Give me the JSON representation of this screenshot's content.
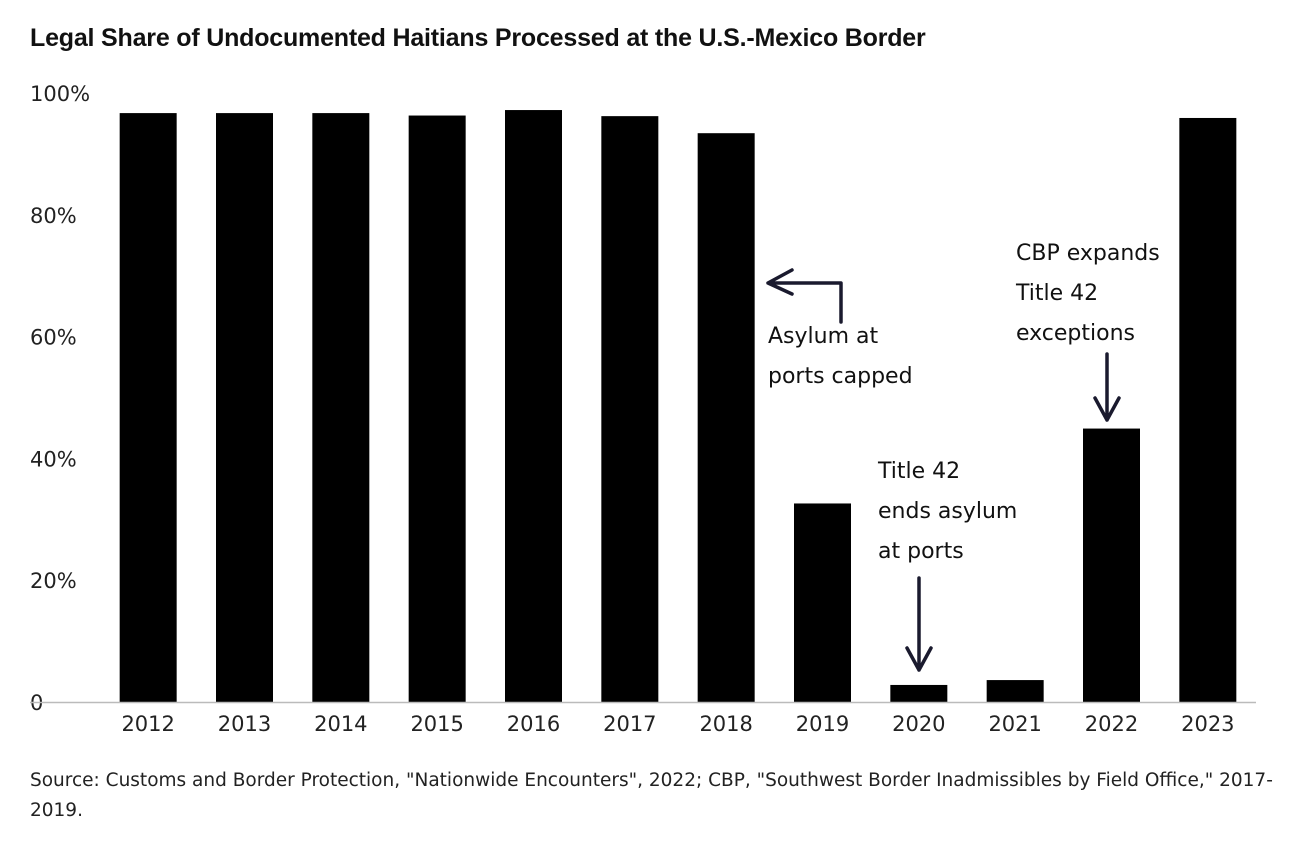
{
  "chart_data": {
    "type": "bar",
    "title": "Legal Share of Undocumented Haitians Processed at the U.S.-Mexico Border",
    "categories": [
      "2012",
      "2013",
      "2014",
      "2015",
      "2016",
      "2017",
      "2018",
      "2019",
      "2020",
      "2021",
      "2022",
      "2023"
    ],
    "values": [
      96.7,
      96.7,
      96.7,
      96.3,
      97.2,
      96.2,
      93.4,
      32.6,
      2.8,
      3.6,
      44.9,
      95.9
    ],
    "ylim": [
      0,
      100
    ],
    "y_ticks": [
      {
        "value": 100,
        "label": "100%"
      },
      {
        "value": 80,
        "label": "80%"
      },
      {
        "value": 60,
        "label": "60%"
      },
      {
        "value": 40,
        "label": "40%"
      },
      {
        "value": 20,
        "label": "20%"
      },
      {
        "value": 0,
        "label": "0"
      }
    ],
    "xlabel": "",
    "ylabel": "",
    "grid": false,
    "bar_color": "#000000",
    "axis_color": "#bbbbbb",
    "annotations": [
      {
        "category": "2018",
        "lines": [
          "Asylum at",
          "ports capped"
        ]
      },
      {
        "category": "2020",
        "lines": [
          "Title 42",
          "ends asylum",
          "at ports"
        ]
      },
      {
        "category": "2022",
        "lines": [
          "CBP expands",
          "Title 42",
          "exceptions"
        ]
      }
    ]
  },
  "source": "Source: Customs and Border Protection, \"Nationwide Encounters\", 2022; CBP, \"Southwest Border Inadmissibles by Field Office,\" 2017-2019."
}
